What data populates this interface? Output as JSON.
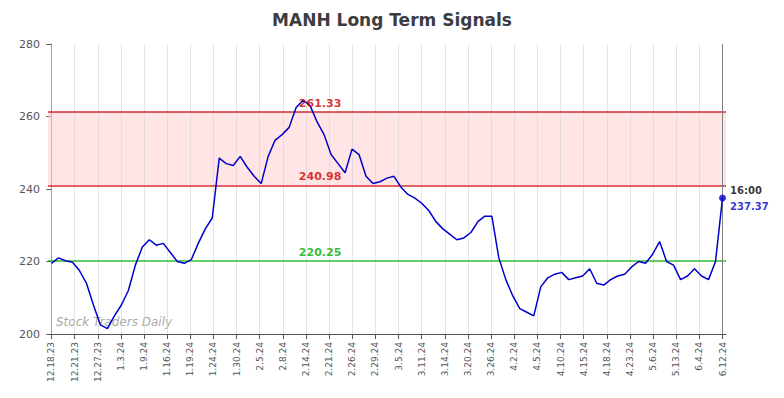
{
  "chart_data": {
    "type": "line",
    "title": "MANH Long Term Signals",
    "color": "#0000cc",
    "x": [
      0,
      1,
      2,
      3,
      4,
      5,
      6,
      7,
      8,
      9,
      10,
      11,
      12,
      13,
      14,
      15,
      16,
      17,
      18,
      19,
      20,
      21,
      22,
      23,
      24,
      25,
      26,
      27,
      28,
      29,
      30,
      31,
      32,
      33,
      34,
      35,
      36,
      37,
      38,
      39,
      40,
      41,
      42,
      43,
      44,
      45,
      46,
      47,
      48,
      49,
      50,
      51,
      52,
      53,
      54,
      55,
      56,
      57,
      58,
      59,
      60,
      61,
      62,
      63,
      64,
      65,
      66,
      67,
      68,
      69,
      70,
      71,
      72,
      73,
      74,
      75,
      76,
      77,
      78,
      79,
      80,
      81,
      82,
      83,
      84,
      85,
      86,
      87,
      88,
      89,
      90,
      91,
      92,
      93,
      94,
      95,
      96
    ],
    "values": [
      219.5,
      221.0,
      220.2,
      219.8,
      217.5,
      214.0,
      208.0,
      202.5,
      201.5,
      205.0,
      208.0,
      212.0,
      219.0,
      224.0,
      226.0,
      224.5,
      225.0,
      222.5,
      220.0,
      219.5,
      220.5,
      225.0,
      229.0,
      232.0,
      248.5,
      247.0,
      246.5,
      249.0,
      246.0,
      243.5,
      241.5,
      249.0,
      253.5,
      255.0,
      257.0,
      262.5,
      264.5,
      263.0,
      258.5,
      255.0,
      249.5,
      247.0,
      244.5,
      251.0,
      249.5,
      243.5,
      241.5,
      242.0,
      243.0,
      243.5,
      240.5,
      238.5,
      237.5,
      236.0,
      234.0,
      231.0,
      229.0,
      227.5,
      226.0,
      226.5,
      228.0,
      231.0,
      232.5,
      232.5,
      221.0,
      215.0,
      210.5,
      207.0,
      206.0,
      205.0,
      213.0,
      215.5,
      216.5,
      217.0,
      215.0,
      215.5,
      216.0,
      218.0,
      214.0,
      213.5,
      215.0,
      216.0,
      216.5,
      218.5,
      220.0,
      219.5,
      222.0,
      225.5,
      220.0,
      219.0,
      215.0,
      216.0,
      218.0,
      216.0,
      215.0,
      220.0,
      237.5
    ],
    "xlim": [
      -0.5,
      96.5
    ],
    "xticks": [
      {
        "value": 0,
        "label": "12.18.23"
      },
      {
        "value": 3.3103448276,
        "label": "12.21.23"
      },
      {
        "value": 6.6206896552,
        "label": "12.27.23"
      },
      {
        "value": 9.9310344828,
        "label": "1.3.24"
      },
      {
        "value": 13.2413793103,
        "label": "1.9.24"
      },
      {
        "value": 16.5517241379,
        "label": "1.16.24"
      },
      {
        "value": 19.8620689655,
        "label": "1.19.24"
      },
      {
        "value": 23.1724137931,
        "label": "1.24.24"
      },
      {
        "value": 26.4827586207,
        "label": "1.30.24"
      },
      {
        "value": 29.7931034483,
        "label": "2.5.24"
      },
      {
        "value": 33.1034482759,
        "label": "2.8.24"
      },
      {
        "value": 36.4137931034,
        "label": "2.14.24"
      },
      {
        "value": 39.724137931,
        "label": "2.21.24"
      },
      {
        "value": 43.0344827586,
        "label": "2.26.24"
      },
      {
        "value": 46.3448275862,
        "label": "2.29.24"
      },
      {
        "value": 49.6551724138,
        "label": "3.5.24"
      },
      {
        "value": 52.9655172414,
        "label": "3.11.24"
      },
      {
        "value": 56.275862069,
        "label": "3.14.24"
      },
      {
        "value": 59.5862068966,
        "label": "3.20.24"
      },
      {
        "value": 62.8965517241,
        "label": "3.26.24"
      },
      {
        "value": 66.2068965517,
        "label": "4.2.24"
      },
      {
        "value": 69.5172413793,
        "label": "4.5.24"
      },
      {
        "value": 72.8275862069,
        "label": "4.10.24"
      },
      {
        "value": 76.1379310345,
        "label": "4.15.24"
      },
      {
        "value": 79.4482758621,
        "label": "4.18.24"
      },
      {
        "value": 82.7586206897,
        "label": "4.23.24"
      },
      {
        "value": 86.0689655172,
        "label": "5.6.24"
      },
      {
        "value": 89.3793103448,
        "label": "5.13.24"
      },
      {
        "value": 92.6896551724,
        "label": "6.4.24"
      },
      {
        "value": 96,
        "label": "6.12.24"
      }
    ],
    "ylim": [
      200,
      280
    ],
    "yticks": [
      200,
      220,
      240,
      260,
      280
    ],
    "grid": "x",
    "hlines": [
      {
        "value": 220.25,
        "label": "220.25",
        "color": "#00aa00"
      },
      {
        "value": 240.98,
        "label": "240.98",
        "color": "#cc0000"
      },
      {
        "value": 261.33,
        "label": "261.33",
        "color": "#cc0000"
      }
    ],
    "band": {
      "from": 240.98,
      "to": 261.33,
      "color": "#ffcccc"
    },
    "last_point": {
      "label": "16:00",
      "value_label": "237.37",
      "color": "#0000cc"
    },
    "watermark": "Stock Traders Daily"
  }
}
